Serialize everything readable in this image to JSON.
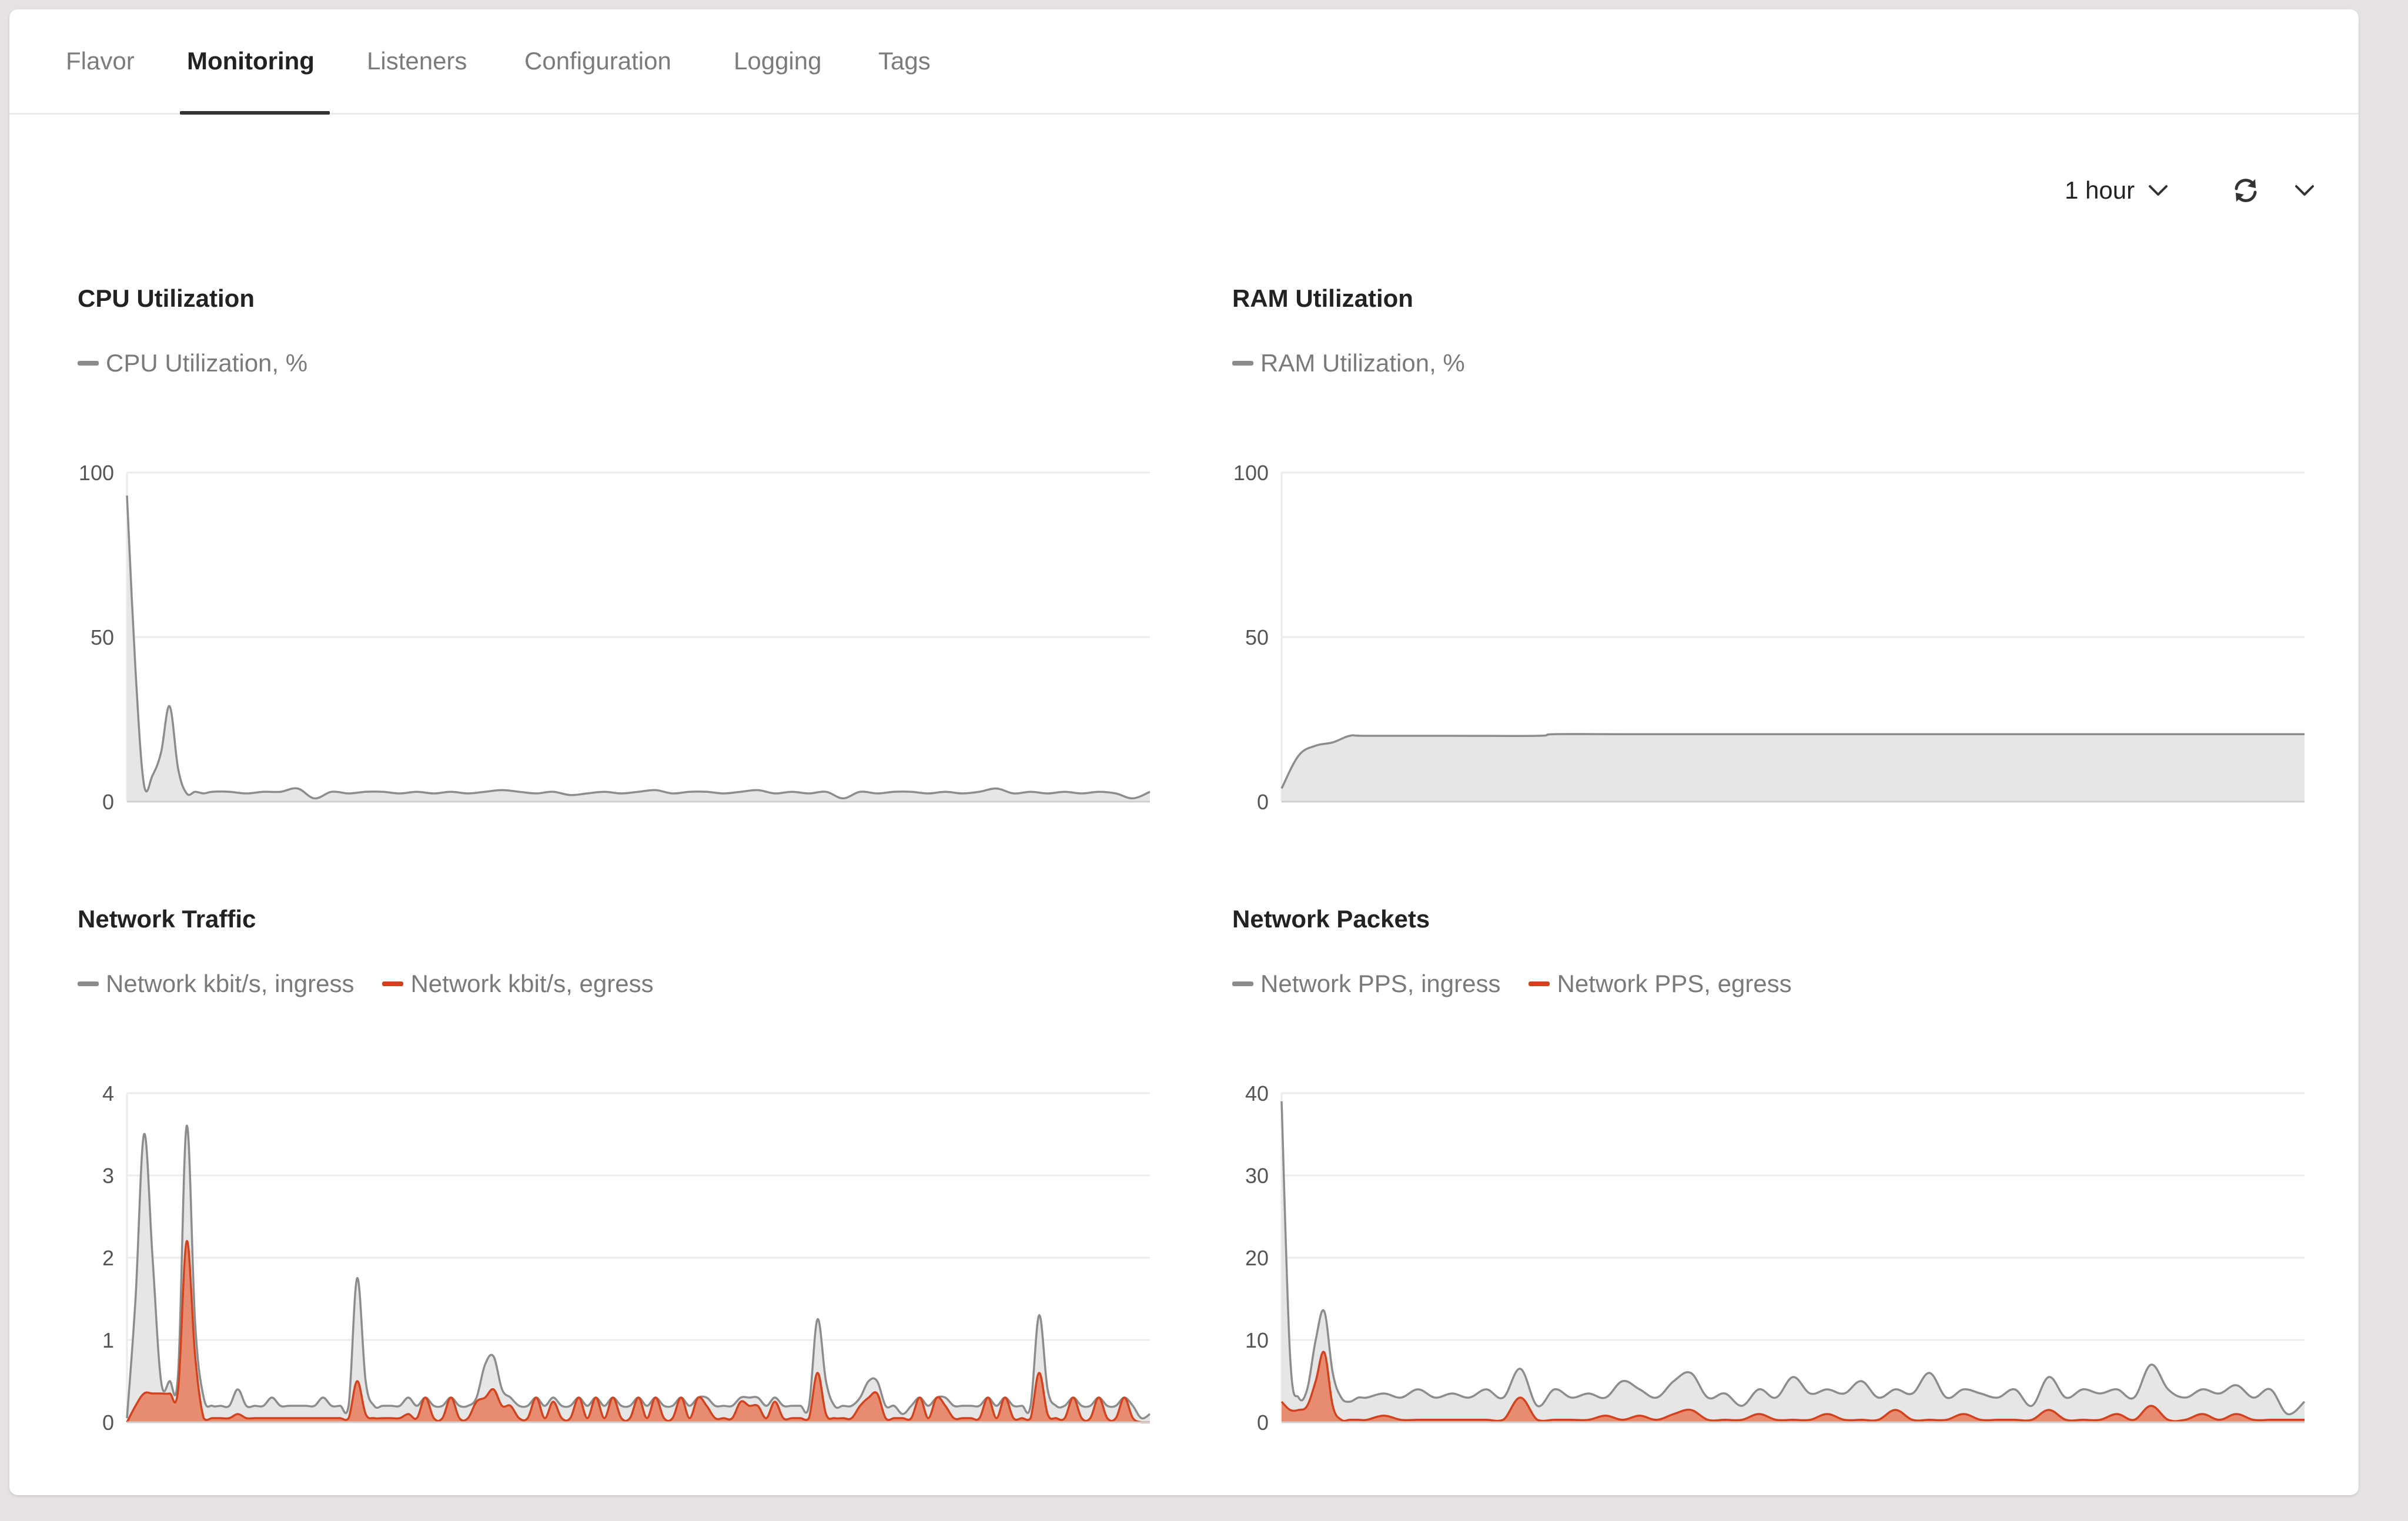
{
  "tabs": [
    {
      "label": "Flavor",
      "active": false
    },
    {
      "label": "Monitoring",
      "active": true
    },
    {
      "label": "Listeners",
      "active": false
    },
    {
      "label": "Configuration",
      "active": false
    },
    {
      "label": "Logging",
      "active": false
    },
    {
      "label": "Tags",
      "active": false
    }
  ],
  "controls": {
    "time_range": "1 hour",
    "time_range_icon": "chevron-down-icon",
    "refresh_icon": "refresh-icon",
    "refresh_menu_icon": "chevron-down-icon"
  },
  "colors": {
    "ingress_line": "#8c8c8c",
    "ingress_fill": "#e6e6e6",
    "egress_line": "#d2421c",
    "egress_fill": "#e8876a",
    "grid": "#ebebeb",
    "axis_text": "#555555"
  },
  "chart_data": [
    {
      "id": "cpu",
      "type": "area",
      "title": "CPU Utilization",
      "ylim": [
        0,
        100
      ],
      "yticks": [
        0,
        50,
        100
      ],
      "x_range": [
        0,
        60
      ],
      "grid": true,
      "legend_position": "top-left",
      "series": [
        {
          "name": "CPU Utilization, %",
          "color": "ingress",
          "x": [
            0,
            0.5,
            1,
            1.5,
            2,
            2.5,
            3,
            3.5,
            4,
            4.5,
            5,
            6,
            7,
            8,
            9,
            10,
            11,
            12,
            13,
            14,
            15,
            16,
            17,
            18,
            19,
            20,
            21,
            22,
            23,
            24,
            25,
            26,
            27,
            28,
            29,
            30,
            31,
            32,
            33,
            34,
            35,
            36,
            37,
            38,
            39,
            40,
            41,
            42,
            43,
            44,
            45,
            46,
            47,
            48,
            49,
            50,
            51,
            52,
            53,
            54,
            55,
            56,
            57,
            58,
            59,
            60
          ],
          "y": [
            93,
            40,
            5,
            8,
            15,
            29,
            10,
            2.5,
            3,
            2.5,
            3,
            3,
            2.5,
            3,
            3,
            4,
            1,
            3,
            2.5,
            3,
            3,
            2.5,
            3,
            2.5,
            3,
            2.5,
            3,
            3.5,
            3,
            2.5,
            3,
            2,
            2.5,
            3,
            2.5,
            3,
            3.5,
            2.5,
            3,
            3,
            2.5,
            3,
            3.5,
            2.5,
            3,
            2.5,
            3,
            1,
            3,
            2.5,
            3,
            3,
            2.5,
            3,
            2.5,
            3,
            4,
            2.5,
            3,
            2.5,
            3,
            2.5,
            3,
            2.5,
            1,
            3
          ]
        }
      ]
    },
    {
      "id": "ram",
      "type": "area",
      "title": "RAM Utilization",
      "ylim": [
        0,
        100
      ],
      "yticks": [
        0,
        50,
        100
      ],
      "x_range": [
        0,
        60
      ],
      "grid": true,
      "legend_position": "top-left",
      "series": [
        {
          "name": "RAM Utilization, %",
          "color": "ingress",
          "x": [
            0,
            1,
            2,
            3,
            4,
            5,
            10,
            15,
            16,
            20,
            30,
            40,
            50,
            60
          ],
          "y": [
            4,
            14,
            17,
            18,
            20,
            20,
            20,
            20,
            20.5,
            20.5,
            20.5,
            20.5,
            20.5,
            20.5
          ]
        }
      ]
    },
    {
      "id": "traffic",
      "type": "area",
      "title": "Network Traffic",
      "ylim": [
        0,
        4
      ],
      "yticks": [
        0,
        1,
        2,
        3,
        4
      ],
      "x_range": [
        0,
        60
      ],
      "grid": true,
      "legend_position": "top-left",
      "series": [
        {
          "name": "Network kbit/s, ingress",
          "color": "ingress",
          "x": [
            0,
            0.5,
            1,
            1.5,
            2,
            2.5,
            3,
            3.5,
            4,
            4.5,
            5,
            5.5,
            6,
            6.5,
            7,
            7.5,
            8,
            8.5,
            9,
            9.5,
            10,
            10.5,
            11,
            11.5,
            12,
            12.5,
            13,
            13.5,
            14,
            14.5,
            15,
            15.5,
            16,
            16.5,
            17,
            17.5,
            18,
            18.5,
            19,
            19.5,
            20,
            20.5,
            21,
            21.5,
            22,
            22.5,
            23,
            23.5,
            24,
            24.5,
            25,
            25.5,
            26,
            26.5,
            27,
            27.5,
            28,
            28.5,
            29,
            29.5,
            30,
            30.5,
            31,
            31.5,
            32,
            32.5,
            33,
            33.5,
            34,
            34.5,
            35,
            35.5,
            36,
            36.5,
            37,
            37.5,
            38,
            38.5,
            39,
            39.5,
            40,
            40.5,
            41,
            41.5,
            42,
            42.5,
            43,
            43.5,
            44,
            44.5,
            45,
            45.5,
            46,
            46.5,
            47,
            47.5,
            48,
            48.5,
            49,
            49.5,
            50,
            50.5,
            51,
            51.5,
            52,
            52.5,
            53,
            53.5,
            54,
            54.5,
            55,
            55.5,
            56,
            56.5,
            57,
            57.5,
            58,
            58.5,
            59,
            59.5,
            60
          ],
          "y": [
            0.05,
            1.5,
            3.5,
            2,
            0.5,
            0.5,
            0.6,
            3.6,
            1.2,
            0.3,
            0.2,
            0.2,
            0.2,
            0.4,
            0.2,
            0.2,
            0.2,
            0.3,
            0.2,
            0.2,
            0.2,
            0.2,
            0.2,
            0.3,
            0.2,
            0.2,
            0.2,
            1.75,
            0.5,
            0.2,
            0.2,
            0.2,
            0.2,
            0.3,
            0.2,
            0.3,
            0.2,
            0.2,
            0.3,
            0.2,
            0.2,
            0.3,
            0.7,
            0.8,
            0.4,
            0.3,
            0.2,
            0.2,
            0.3,
            0.2,
            0.3,
            0.2,
            0.2,
            0.3,
            0.2,
            0.3,
            0.2,
            0.3,
            0.2,
            0.2,
            0.3,
            0.2,
            0.3,
            0.2,
            0.2,
            0.3,
            0.2,
            0.3,
            0.3,
            0.2,
            0.2,
            0.2,
            0.3,
            0.3,
            0.3,
            0.2,
            0.3,
            0.2,
            0.2,
            0.2,
            0.2,
            1.25,
            0.5,
            0.2,
            0.2,
            0.2,
            0.3,
            0.5,
            0.5,
            0.2,
            0.2,
            0.1,
            0.2,
            0.3,
            0.2,
            0.3,
            0.3,
            0.2,
            0.2,
            0.2,
            0.2,
            0.3,
            0.2,
            0.3,
            0.2,
            0.2,
            0.2,
            1.3,
            0.4,
            0.2,
            0.2,
            0.3,
            0.2,
            0.2,
            0.3,
            0.2,
            0.2,
            0.3,
            0.2,
            0.05,
            0.1
          ]
        },
        {
          "name": "Network kbit/s, egress",
          "color": "egress",
          "x": [
            0,
            0.5,
            1,
            1.5,
            2,
            2.5,
            3,
            3.5,
            4,
            4.5,
            5,
            5.5,
            6,
            6.5,
            7,
            7.5,
            8,
            8.5,
            9,
            9.5,
            10,
            10.5,
            11,
            11.5,
            12,
            12.5,
            13,
            13.5,
            14,
            14.5,
            15,
            15.5,
            16,
            16.5,
            17,
            17.5,
            18,
            18.5,
            19,
            19.5,
            20,
            20.5,
            21,
            21.5,
            22,
            22.5,
            23,
            23.5,
            24,
            24.5,
            25,
            25.5,
            26,
            26.5,
            27,
            27.5,
            28,
            28.5,
            29,
            29.5,
            30,
            30.5,
            31,
            31.5,
            32,
            32.5,
            33,
            33.5,
            34,
            34.5,
            35,
            35.5,
            36,
            36.5,
            37,
            37.5,
            38,
            38.5,
            39,
            39.5,
            40,
            40.5,
            41,
            41.5,
            42,
            42.5,
            43,
            43.5,
            44,
            44.5,
            45,
            45.5,
            46,
            46.5,
            47,
            47.5,
            48,
            48.5,
            49,
            49.5,
            50,
            50.5,
            51,
            51.5,
            52,
            52.5,
            53,
            53.5,
            54,
            54.5,
            55,
            55.5,
            56,
            56.5,
            57,
            57.5,
            58,
            58.5,
            59,
            59.5,
            60
          ],
          "y": [
            0,
            0.2,
            0.35,
            0.35,
            0.35,
            0.35,
            0.4,
            2.2,
            0.8,
            0.05,
            0.05,
            0.05,
            0.05,
            0.1,
            0.05,
            0.05,
            0.05,
            0.05,
            0.05,
            0.05,
            0.05,
            0.05,
            0.05,
            0.05,
            0.05,
            0.05,
            0.05,
            0.5,
            0.1,
            0.05,
            0.05,
            0.05,
            0.05,
            0.1,
            0.05,
            0.3,
            0.05,
            0.05,
            0.3,
            0.05,
            0.05,
            0.25,
            0.3,
            0.4,
            0.2,
            0.2,
            0.05,
            0.05,
            0.3,
            0.05,
            0.25,
            0.05,
            0.05,
            0.3,
            0.05,
            0.3,
            0.05,
            0.3,
            0.05,
            0.05,
            0.3,
            0.05,
            0.3,
            0.05,
            0.05,
            0.3,
            0.05,
            0.3,
            0.2,
            0.05,
            0.05,
            0.05,
            0.25,
            0.2,
            0.2,
            0.05,
            0.25,
            0.05,
            0.05,
            0.05,
            0.05,
            0.6,
            0.1,
            0.05,
            0.05,
            0.05,
            0.2,
            0.3,
            0.35,
            0.05,
            0.05,
            0.05,
            0.05,
            0.3,
            0.05,
            0.3,
            0.2,
            0.05,
            0.05,
            0.05,
            0.05,
            0.3,
            0.05,
            0.3,
            0.05,
            0.05,
            0.05,
            0.6,
            0.1,
            0.05,
            0.05,
            0.3,
            0.05,
            0.05,
            0.3,
            0.05,
            0.05,
            0.3,
            0.05,
            0.0,
            0.0
          ]
        }
      ]
    },
    {
      "id": "packets",
      "type": "area",
      "title": "Network Packets",
      "ylim": [
        0,
        40
      ],
      "yticks": [
        0,
        10,
        20,
        30,
        40
      ],
      "x_range": [
        0,
        60
      ],
      "grid": true,
      "legend_position": "top-left",
      "series": [
        {
          "name": "Network PPS, ingress",
          "color": "ingress",
          "x": [
            0,
            0.5,
            1,
            1.5,
            2,
            2.5,
            3,
            3.5,
            4,
            4.5,
            5,
            6,
            7,
            8,
            9,
            10,
            11,
            12,
            13,
            14,
            15,
            16,
            17,
            18,
            19,
            20,
            21,
            22,
            23,
            24,
            25,
            26,
            27,
            28,
            29,
            30,
            31,
            32,
            33,
            34,
            35,
            36,
            37,
            38,
            39,
            40,
            41,
            42,
            43,
            44,
            45,
            46,
            47,
            48,
            49,
            50,
            51,
            52,
            53,
            54,
            55,
            56,
            57,
            58,
            59,
            60
          ],
          "y": [
            39,
            8,
            3,
            4,
            10,
            13.5,
            6,
            3,
            2.5,
            3,
            3,
            3.5,
            3,
            4,
            3,
            3.5,
            3,
            4,
            3,
            6.5,
            2,
            4,
            3,
            3.5,
            3,
            5,
            4,
            3,
            5,
            6,
            3,
            3.5,
            2,
            4,
            3,
            5.5,
            3.5,
            4,
            3.5,
            5,
            3,
            4,
            3.5,
            6,
            3,
            4,
            3.5,
            3,
            4,
            2,
            5.5,
            3,
            4,
            3.5,
            4,
            3,
            7,
            4,
            3,
            4,
            3.5,
            4.5,
            3,
            4,
            1,
            2.5
          ]
        },
        {
          "name": "Network PPS, egress",
          "color": "egress",
          "x": [
            0,
            0.5,
            1,
            1.5,
            2,
            2.5,
            3,
            3.5,
            4,
            4.5,
            5,
            6,
            7,
            8,
            9,
            10,
            11,
            12,
            13,
            14,
            15,
            16,
            17,
            18,
            19,
            20,
            21,
            22,
            23,
            24,
            25,
            26,
            27,
            28,
            29,
            30,
            31,
            32,
            33,
            34,
            35,
            36,
            37,
            38,
            39,
            40,
            41,
            42,
            43,
            44,
            45,
            46,
            47,
            48,
            49,
            50,
            51,
            52,
            53,
            54,
            55,
            56,
            57,
            58,
            59,
            60
          ],
          "y": [
            2.5,
            1.5,
            1.5,
            2,
            5,
            8.5,
            2,
            0.3,
            0.3,
            0.3,
            0.3,
            0.8,
            0.3,
            0.3,
            0.3,
            0.3,
            0.3,
            0.3,
            0.3,
            3,
            0.3,
            0.3,
            0.3,
            0.3,
            0.8,
            0.3,
            0.8,
            0.3,
            1,
            1.5,
            0.3,
            0.3,
            0.3,
            1,
            0.3,
            0.3,
            0.3,
            1,
            0.3,
            0.3,
            0.3,
            1.5,
            0.3,
            0.3,
            0.3,
            1,
            0.3,
            0.3,
            0.3,
            0.3,
            1.5,
            0.3,
            0.3,
            0.3,
            1,
            0.3,
            2,
            0.3,
            0.3,
            1,
            0.3,
            1,
            0.3,
            0.3,
            0.3,
            0.3
          ]
        }
      ]
    }
  ]
}
